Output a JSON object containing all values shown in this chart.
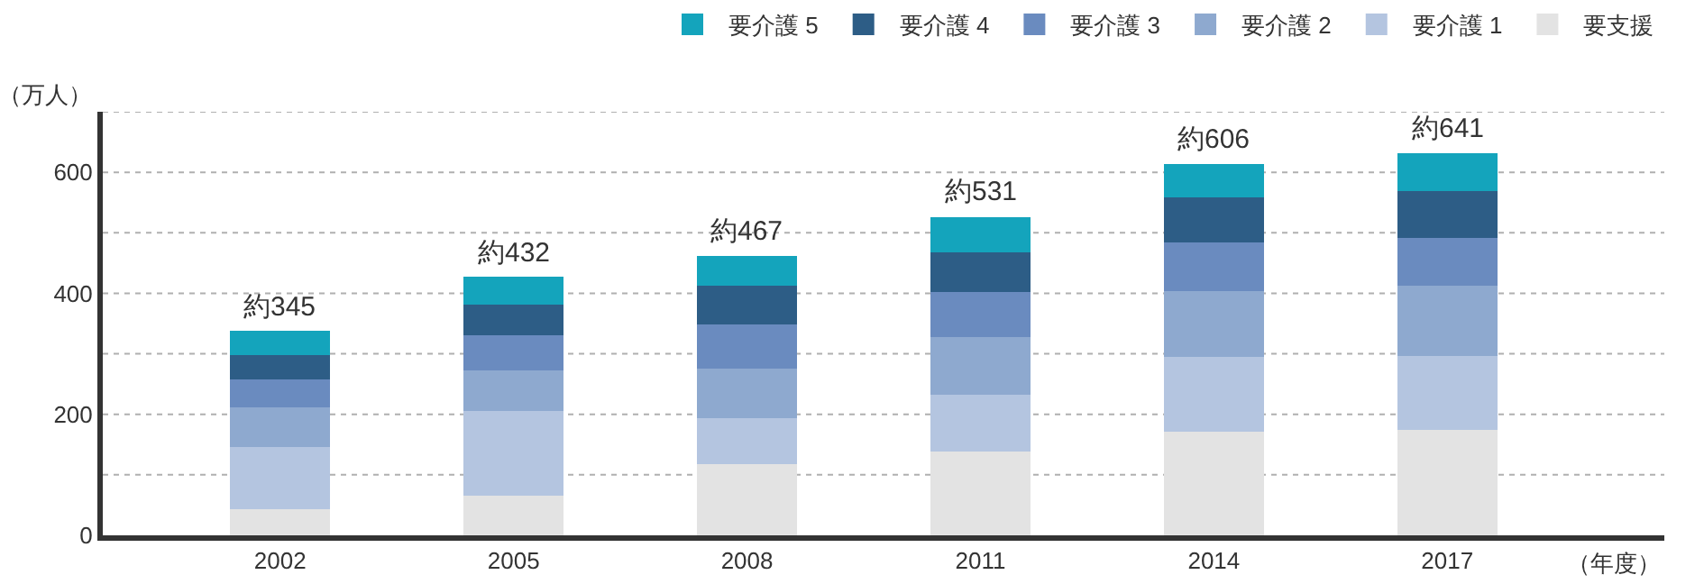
{
  "chart_data": {
    "type": "bar",
    "stacked": true,
    "ylabel": "（万人）",
    "xlabel": "（年度）",
    "categories": [
      "2002",
      "2005",
      "2008",
      "2011",
      "2014",
      "2017"
    ],
    "series": [
      {
        "name": "要支援",
        "color": "#e3e3e3",
        "values": [
          43,
          66,
          117,
          138,
          171,
          174
        ]
      },
      {
        "name": "要介護 1",
        "color": "#b4c5e0",
        "values": [
          103,
          140,
          77,
          94,
          124,
          123
        ]
      },
      {
        "name": "要介護 2",
        "color": "#8ea9cf",
        "values": [
          66,
          67,
          82,
          96,
          108,
          116
        ]
      },
      {
        "name": "要介護 3",
        "color": "#6a8bbf",
        "values": [
          45,
          58,
          72,
          74,
          81,
          78
        ]
      },
      {
        "name": "要介護 4",
        "color": "#2d5d86",
        "values": [
          41,
          50,
          64,
          66,
          75,
          78
        ]
      },
      {
        "name": "要介護 5",
        "color": "#14a4bc",
        "values": [
          40,
          46,
          49,
          58,
          55,
          63
        ]
      }
    ],
    "totals": [
      "約345",
      "約432",
      "約467",
      "約531",
      "約606",
      "約641"
    ],
    "ylim": [
      0,
      700
    ],
    "yticks": [
      0,
      {
        "value": 100,
        "label": null
      },
      200,
      {
        "value": 300,
        "label": null
      },
      400,
      {
        "value": 500,
        "label": null
      },
      600,
      {
        "value": 700,
        "label": null
      }
    ],
    "grid": "y",
    "legend": "top right"
  }
}
